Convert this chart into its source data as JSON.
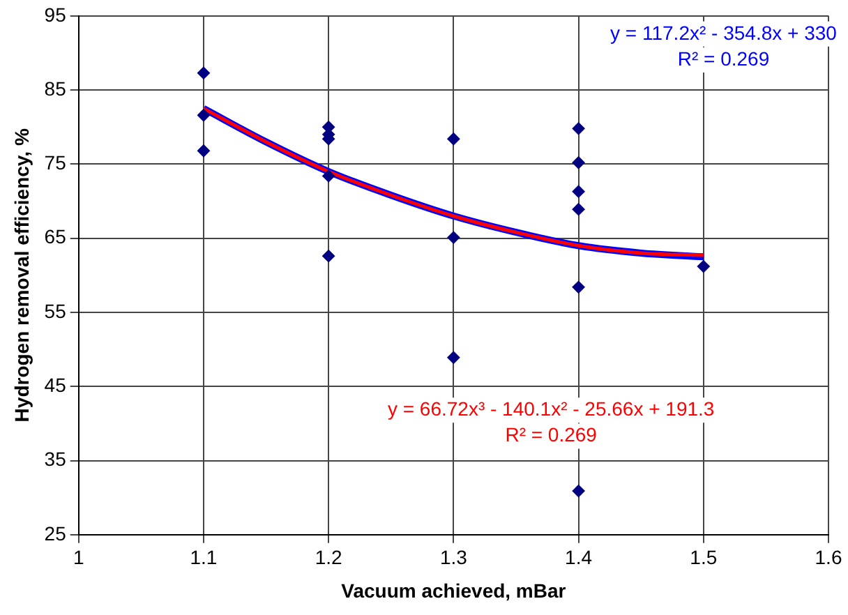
{
  "chart_data": {
    "type": "scatter",
    "xlabel": "Vacuum achieved, mBar",
    "ylabel": "Hydrogen removal efficiency, %",
    "xlim": [
      1,
      1.6
    ],
    "xticks": [
      1,
      1.1,
      1.2,
      1.3,
      1.4,
      1.5,
      1.6
    ],
    "ylim": [
      25,
      95
    ],
    "yticks": [
      25,
      35,
      45,
      55,
      65,
      75,
      85,
      95
    ],
    "grid": true,
    "legend": false,
    "marker": "diamond",
    "series": [
      {
        "color": "#000080",
        "x": [
          1.1,
          1.1,
          1.1,
          1.2,
          1.2,
          1.2,
          1.2,
          1.2,
          1.3,
          1.3,
          1.3,
          1.4,
          1.4,
          1.4,
          1.4,
          1.4,
          1.4,
          1.5
        ],
        "values": [
          87.3,
          81.6,
          76.8,
          80,
          79,
          78.4,
          73.4,
          62.6,
          78.4,
          65.1,
          48.9,
          79.8,
          75.2,
          71.3,
          68.9,
          58.4,
          30.9,
          61.2
        ]
      },
      {
        "type": "line",
        "marker": "none",
        "color": "#0000ff",
        "x": [
          1.1,
          1.15,
          1.2,
          1.25,
          1.3,
          1.35,
          1.4,
          1.45,
          1.5
        ],
        "values": [
          82.5,
          78,
          74,
          70.8,
          68,
          65.8,
          64,
          63,
          62.5
        ]
      },
      {
        "type": "line",
        "marker": "none",
        "color": "#ff0000",
        "x": [
          1.1,
          1.15,
          1.2,
          1.25,
          1.3,
          1.35,
          1.4,
          1.45,
          1.5
        ],
        "values": [
          82.5,
          78,
          74,
          70.8,
          68,
          65.8,
          64,
          63,
          62.7
        ]
      }
    ],
    "annotations": [
      "y = 117.2x² - 354.8x + 330",
      "R² = 0.269",
      "y = 66.72x³ - 140.1x² - 25.66x + 191.3",
      "R² = 0.269"
    ]
  }
}
